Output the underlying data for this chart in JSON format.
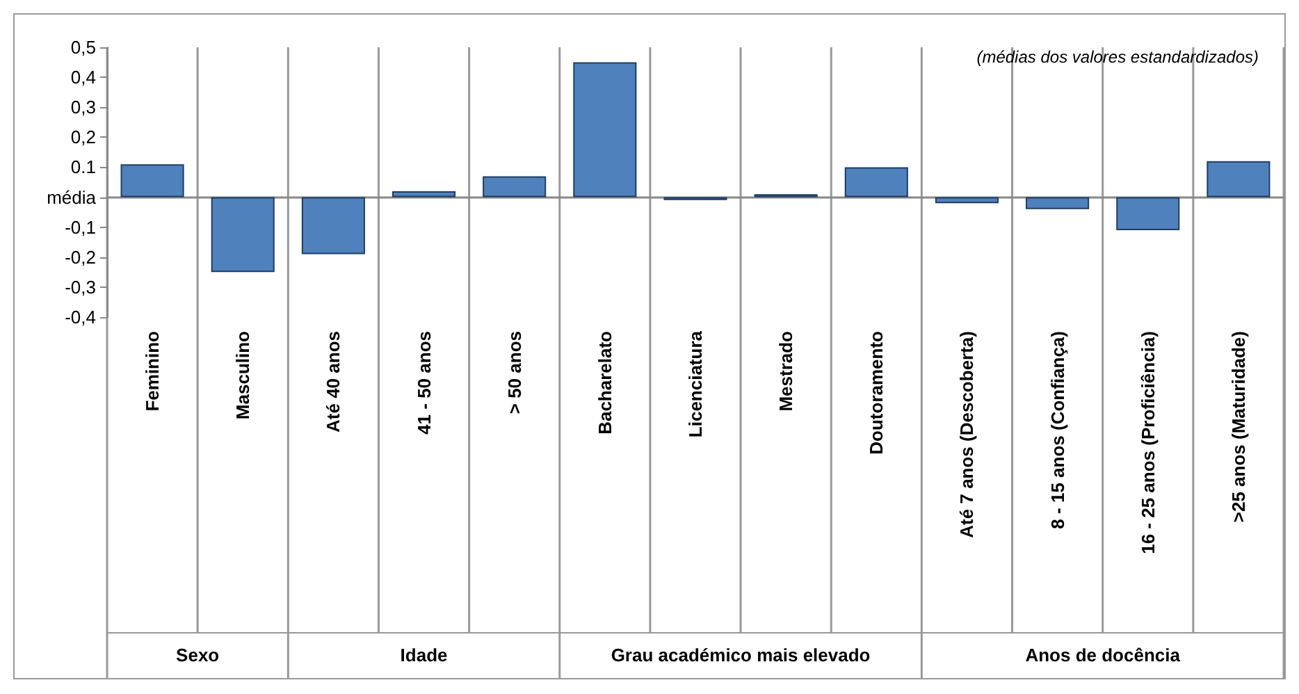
{
  "chart_data": {
    "type": "bar",
    "categories": [
      "Feminino",
      "Masculino",
      "Até 40 anos",
      "41 - 50 anos",
      "> 50 anos",
      "Bacharelato",
      "Licenciatura",
      "Mestrado",
      "Doutoramento",
      "Até 7 anos (Descoberta)",
      "8 - 15 anos (Confiança)",
      "16 - 25 anos (Proficiência)",
      ">25 anos (Maturidade)"
    ],
    "values": [
      0.11,
      -0.25,
      -0.19,
      0.02,
      0.07,
      0.45,
      -0.01,
      0.01,
      0.1,
      -0.02,
      -0.04,
      -0.11,
      0.12
    ],
    "color": "#4f81bd",
    "ylim": [
      -0.4,
      0.5
    ],
    "yticks": [
      {
        "value": -0.4,
        "label": "-0,4"
      },
      {
        "value": -0.3,
        "label": "-0,3"
      },
      {
        "value": -0.2,
        "label": "-0,2"
      },
      {
        "value": -0.1,
        "label": "-0,1"
      },
      {
        "value": 0,
        "label": "média"
      },
      {
        "value": 0.1,
        "label": "0.1"
      },
      {
        "value": 0.2,
        "label": "0,2"
      },
      {
        "value": 0.3,
        "label": "0,3"
      },
      {
        "value": 0.4,
        "label": "0,4"
      },
      {
        "value": 0.5,
        "label": "0,5"
      }
    ],
    "annotations": [
      "(médias dos valores estandardizados)",
      "Sexo",
      "Idade",
      "Grau académico mais elevado",
      "Anos de docência"
    ],
    "grid": "x"
  }
}
